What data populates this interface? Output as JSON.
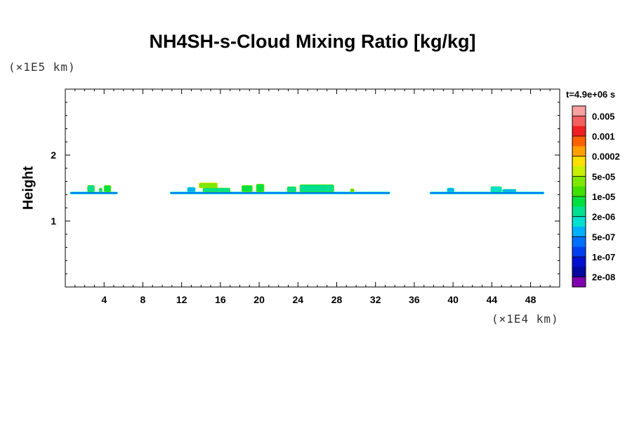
{
  "chart_data": {
    "type": "heatmap",
    "title": "NH4SH-s-Cloud Mixing Ratio [kg/kg]",
    "ylabel": "Height",
    "xlabel": "",
    "x_unit": "(×1E4 km)",
    "y_unit": "(×1E5 km)",
    "time_label": "t=4.9e+06 s",
    "xlim": [
      0,
      51
    ],
    "ylim": [
      0,
      3
    ],
    "x_ticks": [
      4,
      8,
      12,
      16,
      20,
      24,
      28,
      32,
      36,
      40,
      44,
      48
    ],
    "y_ticks": [
      1,
      2
    ],
    "colorbar": {
      "labels": [
        "0.005",
        "0.001",
        "0.0002",
        "5e-05",
        "1e-05",
        "2e-06",
        "5e-07",
        "1e-07",
        "2e-08"
      ],
      "colors_top_to_bottom": [
        "#f9a0a0",
        "#f46060",
        "#ee2020",
        "#ff6000",
        "#ffa000",
        "#ffe000",
        "#c8f000",
        "#80e800",
        "#40e000",
        "#00e040",
        "#00e090",
        "#00e0d0",
        "#00b0ff",
        "#0070ff",
        "#0040f0",
        "#0010d0",
        "#0008a0",
        "#8000b0"
      ]
    },
    "regions": [
      {
        "x": [
          0.5,
          5.4
        ],
        "y": [
          1.41,
          1.44
        ],
        "level": 4
      },
      {
        "x": [
          2.3,
          3.0
        ],
        "y": [
          1.44,
          1.54
        ],
        "level": 7
      },
      {
        "x": [
          3.5,
          3.8
        ],
        "y": [
          1.44,
          1.5
        ],
        "level": 7
      },
      {
        "x": [
          4.0,
          4.7
        ],
        "y": [
          1.44,
          1.54
        ],
        "level": 8
      },
      {
        "x": [
          10.8,
          33.5
        ],
        "y": [
          1.41,
          1.44
        ],
        "level": 4
      },
      {
        "x": [
          12.6,
          13.4
        ],
        "y": [
          1.44,
          1.51
        ],
        "level": 5
      },
      {
        "x": [
          13.8,
          15.7
        ],
        "y": [
          1.5,
          1.58
        ],
        "level": 10
      },
      {
        "x": [
          14.2,
          17.0
        ],
        "y": [
          1.44,
          1.5
        ],
        "level": 7
      },
      {
        "x": [
          18.2,
          19.3
        ],
        "y": [
          1.44,
          1.54
        ],
        "level": 8
      },
      {
        "x": [
          19.7,
          20.5
        ],
        "y": [
          1.44,
          1.56
        ],
        "level": 8
      },
      {
        "x": [
          22.9,
          23.8
        ],
        "y": [
          1.44,
          1.52
        ],
        "level": 7
      },
      {
        "x": [
          24.2,
          27.7
        ],
        "y": [
          1.44,
          1.55
        ],
        "level": 7
      },
      {
        "x": [
          29.4,
          29.8
        ],
        "y": [
          1.44,
          1.49
        ],
        "level": 9
      },
      {
        "x": [
          37.6,
          49.4
        ],
        "y": [
          1.41,
          1.44
        ],
        "level": 4
      },
      {
        "x": [
          39.4,
          40.1
        ],
        "y": [
          1.44,
          1.5
        ],
        "level": 5
      },
      {
        "x": [
          43.9,
          45.0
        ],
        "y": [
          1.44,
          1.52
        ],
        "level": 6
      },
      {
        "x": [
          45.1,
          46.5
        ],
        "y": [
          1.44,
          1.48
        ],
        "level": 5
      }
    ]
  }
}
